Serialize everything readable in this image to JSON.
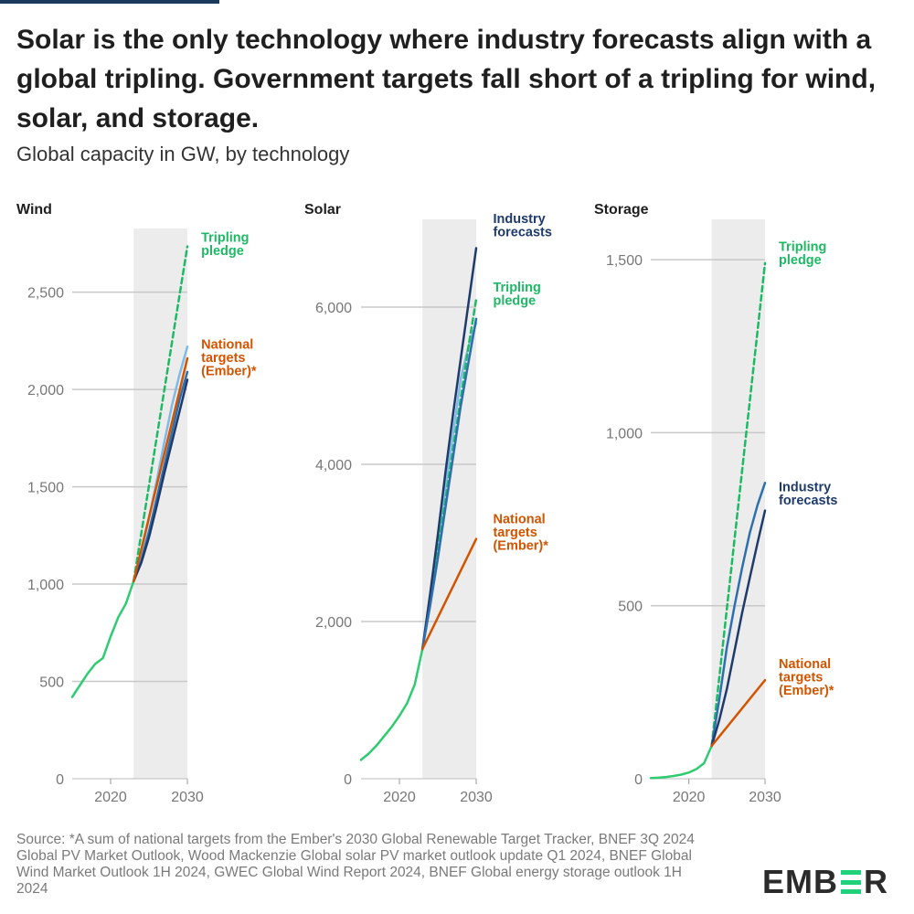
{
  "header": {
    "title": "Solar is the only technology where industry forecasts align with a global tripling. Government targets fall short of a tripling for wind, solar, and storage.",
    "subtitle": "Global capacity in GW, by technology"
  },
  "footer": {
    "source": "Source: *A sum of national targets from the Ember's 2030 Global Renewable Target Tracker, BNEF 3Q 2024 Global PV Market Outlook, Wood Mackenzie Global solar PV market outlook update Q1 2024, BNEF Global Wind Market Outlook 1H 2024, GWEC Global Wind Report 2024, BNEF Global energy storage outlook 1H 2024",
    "logo": "EMBER",
    "logo_parts": [
      "EMB",
      "R"
    ]
  },
  "colors": {
    "historical": "#2ecc71",
    "tripling": "#1db965",
    "industry_dark": "#1f3b6b",
    "industry_mid": "#2e6fae",
    "industry_light": "#7fbbe6",
    "national": "#d35400",
    "shade": "#ececec",
    "grid": "#c8c8c8"
  },
  "chart_data": [
    {
      "type": "line",
      "title": "Wind",
      "unit": "GW",
      "xlim": [
        2015,
        2030
      ],
      "ylim": [
        0,
        2780
      ],
      "yticks": [
        0,
        500,
        1000,
        1500,
        2000,
        2500
      ],
      "yticklabels": [
        "0",
        "500",
        "1,000",
        "1,500",
        "2,000",
        "2,500"
      ],
      "xticks": [
        2020,
        2030
      ],
      "xticklabels": [
        "2020",
        "2030"
      ],
      "shaded_range": [
        2023,
        2030
      ],
      "series": [
        {
          "name": "Historical",
          "role": "historical",
          "x": [
            2015,
            2016,
            2017,
            2018,
            2019,
            2020,
            2021,
            2022,
            2023
          ],
          "y": [
            420,
            480,
            540,
            590,
            620,
            730,
            830,
            900,
            1015
          ]
        },
        {
          "name": "Tripling pledge",
          "role": "tripling",
          "x": [
            2023,
            2030
          ],
          "y": [
            1015,
            2735
          ]
        },
        {
          "name": "Industry forecast (high)",
          "role": "industry_light",
          "x": [
            2023,
            2024,
            2025,
            2026,
            2027,
            2028,
            2029,
            2030
          ],
          "y": [
            1015,
            1160,
            1340,
            1530,
            1730,
            1920,
            2080,
            2220
          ]
        },
        {
          "name": "Industry forecast",
          "role": "industry_mid",
          "x": [
            2023,
            2024,
            2025,
            2026,
            2027,
            2028,
            2029,
            2030
          ],
          "y": [
            1015,
            1120,
            1270,
            1440,
            1610,
            1780,
            1950,
            2090
          ]
        },
        {
          "name": "Industry forecast",
          "role": "industry_dark",
          "x": [
            2023,
            2024,
            2025,
            2026,
            2027,
            2028,
            2029,
            2030
          ],
          "y": [
            1015,
            1110,
            1240,
            1400,
            1570,
            1730,
            1890,
            2050
          ]
        },
        {
          "name": "National targets (Ember)*",
          "role": "national",
          "x": [
            2023,
            2030
          ],
          "y": [
            1015,
            2160
          ]
        }
      ],
      "labels": [
        {
          "text": [
            "Tripling",
            "pledge"
          ],
          "role": "tripling",
          "x": 2031.8,
          "y": 2760
        },
        {
          "text": [
            "National",
            "targets",
            "(Ember)*"
          ],
          "role": "national",
          "x": 2031.8,
          "y": 2210
        }
      ]
    },
    {
      "type": "line",
      "title": "Solar",
      "unit": "GW",
      "xlim": [
        2015,
        2030
      ],
      "ylim": [
        0,
        7000
      ],
      "yticks": [
        0,
        2000,
        4000,
        6000
      ],
      "yticklabels": [
        "0",
        "2,000",
        "4,000",
        "6,000"
      ],
      "xticks": [
        2020,
        2030
      ],
      "xticklabels": [
        "2020",
        "2030"
      ],
      "shaded_range": [
        2023,
        2030
      ],
      "series": [
        {
          "name": "Historical",
          "role": "historical",
          "x": [
            2015,
            2016,
            2017,
            2018,
            2019,
            2020,
            2021,
            2022,
            2023
          ],
          "y": [
            240,
            320,
            420,
            540,
            660,
            800,
            960,
            1200,
            1650
          ]
        },
        {
          "name": "Industry forecast (light)",
          "role": "industry_light",
          "x": [
            2023,
            2024,
            2025,
            2026,
            2027,
            2028,
            2029,
            2030
          ],
          "y": [
            1650,
            2300,
            3000,
            3700,
            4400,
            5100,
            5500,
            5800
          ]
        },
        {
          "name": "Tripling pledge",
          "role": "tripling",
          "x": [
            2023,
            2024,
            2025,
            2026,
            2027,
            2028,
            2029,
            2030
          ],
          "y": [
            1650,
            2250,
            2900,
            3550,
            4200,
            4850,
            5500,
            6100
          ]
        },
        {
          "name": "Industry forecasts",
          "role": "industry_dark",
          "x": [
            2023,
            2024,
            2025,
            2026,
            2027,
            2028,
            2029,
            2030
          ],
          "y": [
            1650,
            2350,
            3100,
            3900,
            4650,
            5350,
            6050,
            6750
          ]
        },
        {
          "name": "Industry forecast",
          "role": "industry_mid",
          "x": [
            2023,
            2024,
            2025,
            2026,
            2027,
            2028,
            2029,
            2030
          ],
          "y": [
            1650,
            2200,
            2800,
            3450,
            4100,
            4750,
            5300,
            5850
          ]
        },
        {
          "name": "National targets (Ember)*",
          "role": "national",
          "x": [
            2023,
            2030
          ],
          "y": [
            1650,
            3050
          ]
        }
      ],
      "labels": [
        {
          "text": [
            "Industry",
            "forecasts"
          ],
          "role": "industry_dark",
          "x": 2032.2,
          "y": 7070
        },
        {
          "text": [
            "Tripling",
            "pledge"
          ],
          "role": "tripling",
          "x": 2032.2,
          "y": 6200
        },
        {
          "text": [
            "National",
            "targets",
            "(Ember)*"
          ],
          "role": "national",
          "x": 2032.2,
          "y": 3250
        }
      ]
    },
    {
      "type": "line",
      "title": "Storage",
      "unit": "GW",
      "xlim": [
        2015,
        2030
      ],
      "ylim": [
        0,
        1590
      ],
      "yticks": [
        0,
        500,
        1000,
        1500
      ],
      "yticklabels": [
        "0",
        "500",
        "1,000",
        "1,500"
      ],
      "xticks": [
        2020,
        2030
      ],
      "xticklabels": [
        "2020",
        "2030"
      ],
      "shaded_range": [
        2023,
        2030
      ],
      "series": [
        {
          "name": "Historical",
          "role": "historical",
          "x": [
            2015,
            2016,
            2017,
            2018,
            2019,
            2020,
            2021,
            2022,
            2023
          ],
          "y": [
            2,
            3,
            5,
            8,
            12,
            18,
            28,
            45,
            95
          ]
        },
        {
          "name": "Tripling pledge",
          "role": "tripling",
          "x": [
            2023,
            2030
          ],
          "y": [
            95,
            1490
          ]
        },
        {
          "name": "Industry forecasts",
          "role": "industry_mid",
          "x": [
            2023,
            2024,
            2025,
            2026,
            2027,
            2028,
            2029,
            2030
          ],
          "y": [
            95,
            230,
            380,
            500,
            610,
            710,
            790,
            855
          ]
        },
        {
          "name": "Industry forecasts",
          "role": "industry_dark",
          "x": [
            2023,
            2024,
            2025,
            2026,
            2027,
            2028,
            2029,
            2030
          ],
          "y": [
            95,
            170,
            260,
            370,
            480,
            580,
            680,
            775
          ]
        },
        {
          "name": "National targets (Ember)*",
          "role": "national",
          "x": [
            2023,
            2030
          ],
          "y": [
            95,
            285
          ]
        }
      ],
      "labels": [
        {
          "text": [
            "Tripling",
            "pledge"
          ],
          "role": "tripling",
          "x": 2031.8,
          "y": 1525
        },
        {
          "text": [
            "Industry",
            "forecasts"
          ],
          "role": "industry_dark",
          "x": 2031.8,
          "y": 830
        },
        {
          "text": [
            "National",
            "targets",
            "(Ember)*"
          ],
          "role": "national",
          "x": 2031.8,
          "y": 320
        }
      ]
    }
  ]
}
